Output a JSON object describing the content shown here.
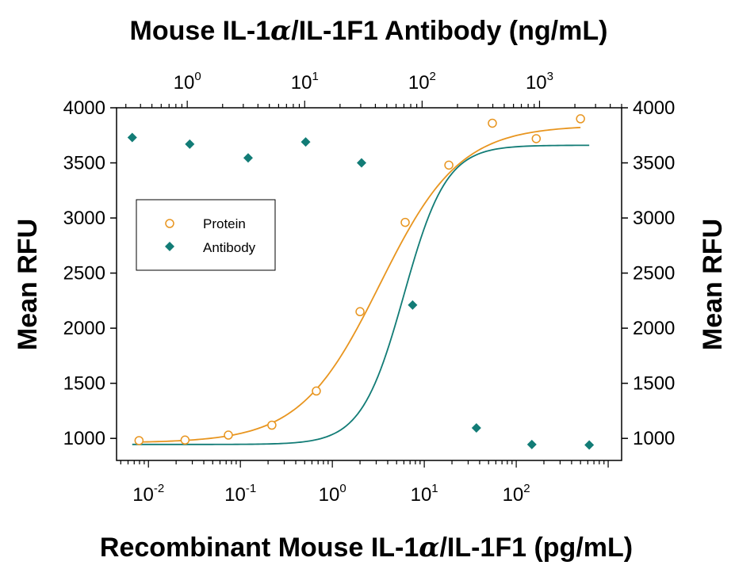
{
  "chart_data": {
    "type": "scatter",
    "title": "Mouse IL-1α/IL-1F1 Antibody (ng/mL)",
    "title_parts": {
      "prefix": "Mouse IL-1",
      "greek": "α",
      "suffix": "/IL-1F1 Antibody (ng/mL)"
    },
    "xlabel": "Recombinant Mouse IL-1α/IL-1F1 (pg/mL)",
    "xlabel_parts": {
      "prefix": "Recombinant Mouse IL-1",
      "greek": "α",
      "suffix": "/IL-1F1 (pg/mL)"
    },
    "ylabel": "Mean RFU",
    "ylabel_right": "Mean RFU",
    "xscale": "log",
    "xlim": [
      0.0045,
      1400
    ],
    "ylim": [
      800,
      4000
    ],
    "yticks": [
      1000,
      1500,
      2000,
      2500,
      3000,
      3500,
      4000
    ],
    "ytick_labels": [
      "1000",
      "1500",
      "2000",
      "2500",
      "3000",
      "3500",
      "4000"
    ],
    "xticks": [
      {
        "value": 0.01,
        "base": "10",
        "exp": "-2"
      },
      {
        "value": 0.1,
        "base": "10",
        "exp": "-1"
      },
      {
        "value": 1,
        "base": "10",
        "exp": "0"
      },
      {
        "value": 10,
        "base": "10",
        "exp": "1"
      },
      {
        "value": 100,
        "base": "10",
        "exp": "2"
      }
    ],
    "top_axis": {
      "label": "Mouse IL-1α/IL-1F1 Antibody (ng/mL)",
      "xscale": "log",
      "xlim": [
        0.25,
        5000
      ],
      "xticks": [
        {
          "value": 1,
          "base": "10",
          "exp": "0"
        },
        {
          "value": 10,
          "base": "10",
          "exp": "1"
        },
        {
          "value": 100,
          "base": "10",
          "exp": "2"
        },
        {
          "value": 1000,
          "base": "10",
          "exp": "3"
        }
      ]
    },
    "legend": {
      "position": "left-middle",
      "entries": [
        "Protein",
        "Antibody"
      ]
    },
    "grid": false,
    "series": [
      {
        "name": "Protein",
        "axis": "bottom",
        "marker": "open-circle",
        "color": "#E8951F",
        "x": [
          0.0079,
          0.025,
          0.074,
          0.22,
          0.67,
          2.0,
          6.2,
          18.5,
          55,
          165,
          500
        ],
        "y": [
          980,
          985,
          1030,
          1120,
          1430,
          2150,
          2960,
          3480,
          3860,
          3720,
          3900
        ],
        "fit": {
          "model": "4PL",
          "bottom": 960,
          "top": 3840,
          "ec50": 3.3,
          "hill": 1.0
        }
      },
      {
        "name": "Antibody",
        "axis": "top",
        "marker": "filled-diamond",
        "color": "#127C76",
        "x": [
          0.34,
          1.05,
          3.3,
          10.2,
          30.5,
          83,
          290,
          860,
          2650
        ],
        "y": [
          3730,
          3670,
          3545,
          3690,
          3500,
          2210,
          1095,
          945,
          940
        ],
        "fit": {
          "model": "4PL",
          "bottom": 945,
          "top": 3660,
          "ec50": 70,
          "hill": 2.4
        }
      }
    ]
  }
}
